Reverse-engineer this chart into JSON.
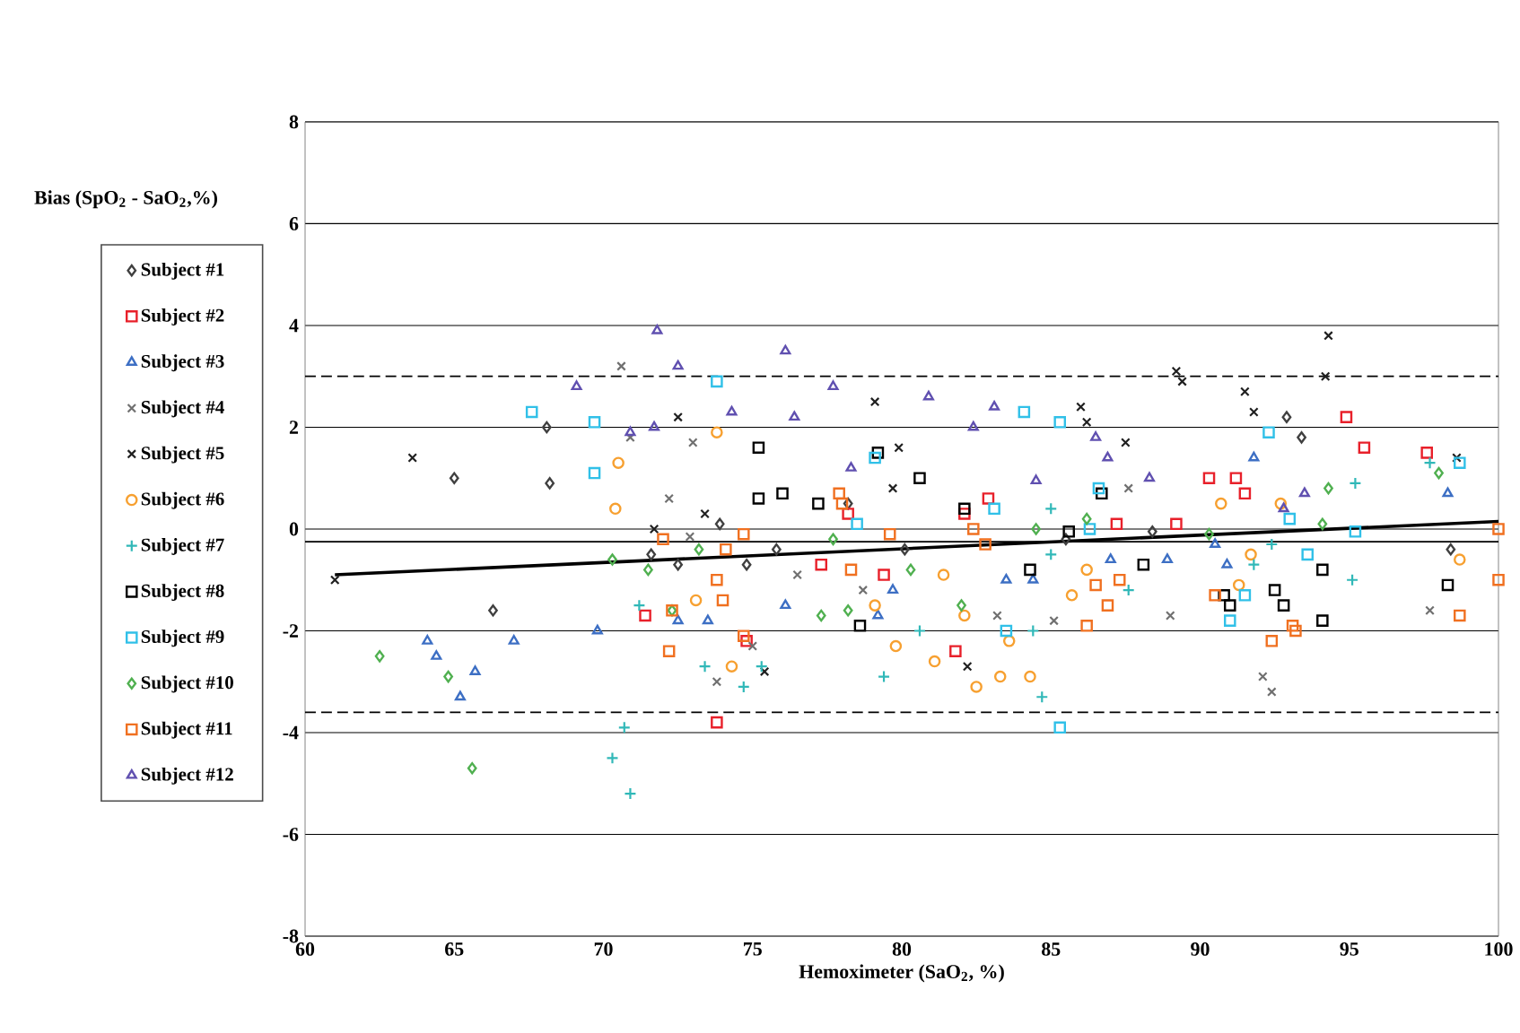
{
  "chart_data": {
    "type": "scatter",
    "xlabel": "Hemoximeter (SaO$_{2}$, %)",
    "ylabel": "Bias (SpO$_{2}$ - SaO$_{2}$,%)",
    "xlim": [
      60,
      100
    ],
    "ylim": [
      -8,
      8
    ],
    "xticks": [
      60,
      65,
      70,
      75,
      80,
      85,
      90,
      95,
      100
    ],
    "yticks": [
      -8,
      -6,
      -4,
      -2,
      0,
      2,
      4,
      6,
      8
    ],
    "grid": "y",
    "legend": "left",
    "ref_lines": [
      {
        "axis": "y",
        "value": 3.0,
        "line_style": "dashed",
        "color": "#000000"
      },
      {
        "axis": "y",
        "value": -3.6,
        "line_style": "dashed",
        "color": "#000000"
      },
      {
        "axis": "y",
        "value": -0.25,
        "line_style": "solid",
        "color": "#000000"
      }
    ],
    "series": [
      {
        "name": "Subject #1",
        "color": "#404040",
        "marker": "diamond",
        "x": [
          65,
          66.3,
          68.1,
          68.2,
          71.6,
          72.5,
          73.9,
          74.8,
          75.8,
          78.2,
          80.1,
          85.5,
          88.4,
          92.9,
          93.4,
          98.4
        ],
        "values": [
          1.0,
          -1.6,
          2.0,
          0.9,
          -0.5,
          -0.7,
          0.1,
          -0.7,
          -0.4,
          0.5,
          -0.4,
          -0.2,
          -0.05,
          2.2,
          1.8,
          -0.4
        ]
      },
      {
        "name": "Subject #2",
        "color": "#e8202a",
        "marker": "square",
        "x": [
          71.4,
          73.8,
          74.8,
          77.3,
          78.2,
          79.4,
          81.8,
          82.1,
          82.9,
          87.2,
          89.2,
          90.3,
          91.2,
          91.5,
          94.9,
          95.5,
          97.6
        ],
        "values": [
          -1.7,
          -3.8,
          -2.2,
          -0.7,
          0.3,
          -0.9,
          -2.4,
          0.3,
          0.6,
          0.1,
          0.1,
          1.0,
          1.0,
          0.7,
          2.2,
          1.6,
          1.5
        ]
      },
      {
        "name": "Subject #3",
        "color": "#3d6fc4",
        "marker": "triangle",
        "x": [
          64.1,
          64.4,
          65.2,
          65.7,
          67.0,
          69.8,
          72.5,
          73.5,
          76.1,
          79.2,
          79.7,
          83.5,
          84.4,
          87.0,
          88.9,
          90.5,
          90.9,
          91.8,
          98.3
        ],
        "values": [
          -2.2,
          -2.5,
          -3.3,
          -2.8,
          -2.2,
          -2.0,
          -1.8,
          -1.8,
          -1.5,
          -1.7,
          -1.2,
          -1.0,
          -1.0,
          -0.6,
          -0.6,
          -0.3,
          -0.7,
          1.4,
          0.7
        ]
      },
      {
        "name": "Subject #4",
        "color": "#707070",
        "marker": "cross",
        "x": [
          70.6,
          70.9,
          72.2,
          73.0,
          72.9,
          73.8,
          75.0,
          76.5,
          78.7,
          83.2,
          85.1,
          87.6,
          89.0,
          92.1,
          92.4,
          97.7
        ],
        "values": [
          3.2,
          1.8,
          0.6,
          1.7,
          -0.15,
          -3.0,
          -2.3,
          -0.9,
          -1.2,
          -1.7,
          -1.8,
          0.8,
          -1.7,
          -2.9,
          -3.2,
          -1.6
        ]
      },
      {
        "name": "Subject #5",
        "color": "#202020",
        "marker": "cross",
        "x": [
          61.0,
          63.6,
          71.7,
          72.5,
          73.4,
          75.4,
          79.1,
          79.7,
          79.9,
          82.2,
          86.0,
          86.2,
          87.5,
          89.2,
          89.4,
          91.5,
          91.8,
          94.2,
          94.3,
          98.6
        ],
        "values": [
          -1.0,
          1.4,
          0.0,
          2.2,
          0.3,
          -2.8,
          2.5,
          0.8,
          1.6,
          -2.7,
          2.4,
          2.1,
          1.7,
          3.1,
          2.9,
          2.7,
          2.3,
          3.0,
          3.8,
          1.4
        ]
      },
      {
        "name": "Subject #6",
        "color": "#f7a030",
        "marker": "circle",
        "x": [
          70.4,
          70.5,
          73.1,
          73.8,
          74.3,
          79.1,
          79.8,
          81.1,
          81.4,
          82.1,
          82.5,
          83.3,
          83.6,
          84.3,
          85.7,
          86.2,
          90.7,
          91.3,
          91.7,
          92.7,
          98.7
        ],
        "values": [
          0.4,
          1.3,
          -1.4,
          1.9,
          -2.7,
          -1.5,
          -2.3,
          -2.6,
          -0.9,
          -1.7,
          -3.1,
          -2.9,
          -2.2,
          -2.9,
          -1.3,
          -0.8,
          0.5,
          -1.1,
          -0.5,
          0.5,
          -0.6
        ]
      },
      {
        "name": "Subject #7",
        "color": "#30b8b8",
        "marker": "plus",
        "x": [
          70.3,
          70.7,
          70.9,
          71.2,
          73.4,
          74.7,
          75.3,
          79.4,
          80.6,
          84.4,
          84.7,
          85.0,
          85.0,
          87.6,
          91.8,
          92.4,
          95.1,
          95.2,
          97.7
        ],
        "values": [
          -4.5,
          -3.9,
          -5.2,
          -1.5,
          -2.7,
          -3.1,
          -2.7,
          -2.9,
          -2.0,
          -2.0,
          -3.3,
          -0.5,
          0.4,
          -1.2,
          -0.7,
          -0.3,
          -1.0,
          0.9,
          1.3
        ]
      },
      {
        "name": "Subject #8",
        "color": "#000000",
        "marker": "square",
        "x": [
          75.2,
          75.2,
          76.0,
          77.2,
          78.6,
          79.2,
          80.6,
          82.1,
          84.3,
          85.6,
          86.7,
          88.1,
          90.8,
          91.0,
          92.5,
          92.8,
          94.1,
          94.1,
          98.3
        ],
        "values": [
          1.6,
          0.6,
          0.7,
          0.5,
          -1.9,
          1.5,
          1.0,
          0.4,
          -0.8,
          -0.05,
          0.7,
          -0.7,
          -1.3,
          -1.5,
          -1.2,
          -1.5,
          -0.8,
          -1.8,
          -1.1
        ]
      },
      {
        "name": "Subject #9",
        "color": "#30c0e8",
        "marker": "square",
        "x": [
          67.6,
          69.7,
          69.7,
          73.8,
          78.5,
          79.1,
          83.1,
          83.5,
          84.1,
          85.3,
          85.3,
          86.3,
          86.6,
          91.0,
          91.5,
          92.3,
          93.0,
          93.6,
          95.2,
          98.7
        ],
        "values": [
          2.3,
          2.1,
          1.1,
          2.9,
          0.1,
          1.4,
          0.4,
          -2.0,
          2.3,
          2.1,
          -3.9,
          0.0,
          0.8,
          -1.8,
          -1.3,
          1.9,
          0.2,
          -0.5,
          -0.05,
          1.3
        ]
      },
      {
        "name": "Subject #10",
        "color": "#50b050",
        "marker": "diamond",
        "x": [
          62.5,
          64.8,
          65.6,
          70.3,
          71.5,
          72.3,
          73.2,
          77.3,
          77.7,
          78.2,
          80.3,
          82.0,
          84.5,
          86.2,
          90.3,
          94.1,
          94.3,
          98.0
        ],
        "values": [
          -2.5,
          -2.9,
          -4.7,
          -0.6,
          -0.8,
          -1.6,
          -0.4,
          -1.7,
          -0.2,
          -1.6,
          -0.8,
          -1.5,
          0.0,
          0.2,
          -0.1,
          0.1,
          0.8,
          1.1
        ]
      },
      {
        "name": "Subject #11",
        "color": "#f07020",
        "marker": "square",
        "x": [
          72.0,
          72.2,
          72.3,
          73.8,
          74.0,
          74.1,
          74.7,
          74.7,
          77.9,
          78.0,
          78.3,
          79.6,
          82.4,
          82.8,
          86.2,
          86.5,
          86.9,
          87.3,
          90.5,
          92.4,
          93.1,
          93.2,
          98.7,
          100.0,
          100.0
        ],
        "values": [
          -0.2,
          -2.4,
          -1.6,
          -1.0,
          -1.4,
          -0.4,
          -0.1,
          -2.1,
          0.7,
          0.5,
          -0.8,
          -0.1,
          0.0,
          -0.3,
          -1.9,
          -1.1,
          -1.5,
          -1.0,
          -1.3,
          -2.2,
          -1.9,
          -2.0,
          -1.7,
          -1.0,
          0.0
        ]
      },
      {
        "name": "Subject #12",
        "color": "#6050b0",
        "marker": "triangle",
        "x": [
          69.1,
          70.9,
          71.7,
          71.8,
          72.5,
          74.3,
          76.1,
          76.4,
          77.7,
          78.3,
          80.9,
          82.4,
          83.1,
          84.5,
          86.5,
          86.9,
          88.3,
          92.8,
          93.5
        ],
        "values": [
          2.8,
          1.9,
          2.0,
          3.9,
          3.2,
          2.3,
          3.5,
          2.2,
          2.8,
          1.2,
          2.6,
          2.0,
          2.4,
          0.95,
          1.8,
          1.4,
          1.0,
          0.4,
          0.7
        ]
      },
      {
        "type": "line",
        "color": "#000000",
        "marker": "none",
        "line_style": "solid",
        "x": [
          61,
          100
        ],
        "values": [
          -0.9,
          0.15
        ]
      }
    ]
  }
}
